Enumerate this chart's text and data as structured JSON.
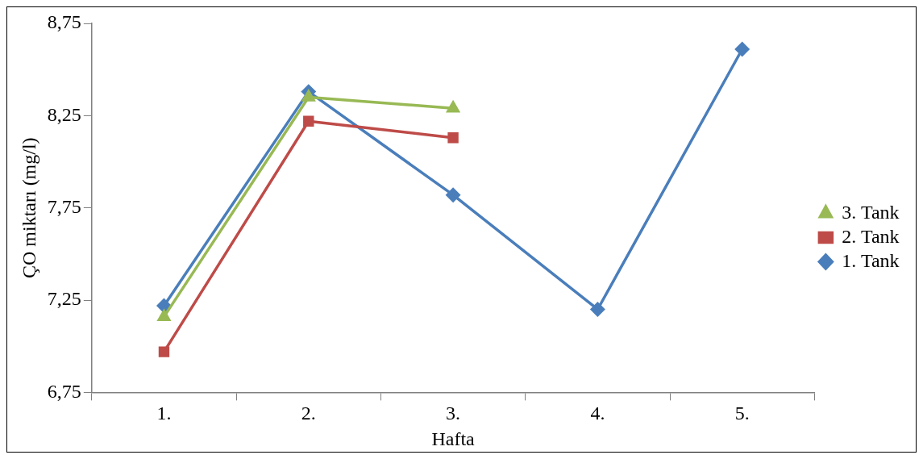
{
  "chart_data": {
    "type": "line",
    "ylabel": "ÇO miktarı (mg/l)",
    "xlabel": "Hafta",
    "categories": [
      "1.",
      "2.",
      "3.",
      "4.",
      "5."
    ],
    "series": [
      {
        "name": "1. Tank",
        "color": "#4a7ebb",
        "marker": "diamond",
        "values": [
          7.22,
          8.38,
          7.82,
          7.2,
          8.61
        ]
      },
      {
        "name": "2. Tank",
        "color": "#be4b48",
        "marker": "square",
        "values": [
          6.97,
          8.22,
          8.13,
          null,
          null
        ]
      },
      {
        "name": "3. Tank",
        "color": "#98b954",
        "marker": "triangle",
        "values": [
          7.16,
          8.35,
          8.29,
          null,
          null
        ]
      }
    ],
    "ylim": [
      6.75,
      8.75
    ],
    "yticks": [
      {
        "value": 6.75,
        "label": "6,75"
      },
      {
        "value": 7.25,
        "label": "7,25"
      },
      {
        "value": 7.75,
        "label": "7,75"
      },
      {
        "value": 8.25,
        "label": "8,25"
      },
      {
        "value": 8.75,
        "label": "8,75"
      }
    ],
    "grid": false,
    "legend": "right",
    "line_style": "solid"
  }
}
